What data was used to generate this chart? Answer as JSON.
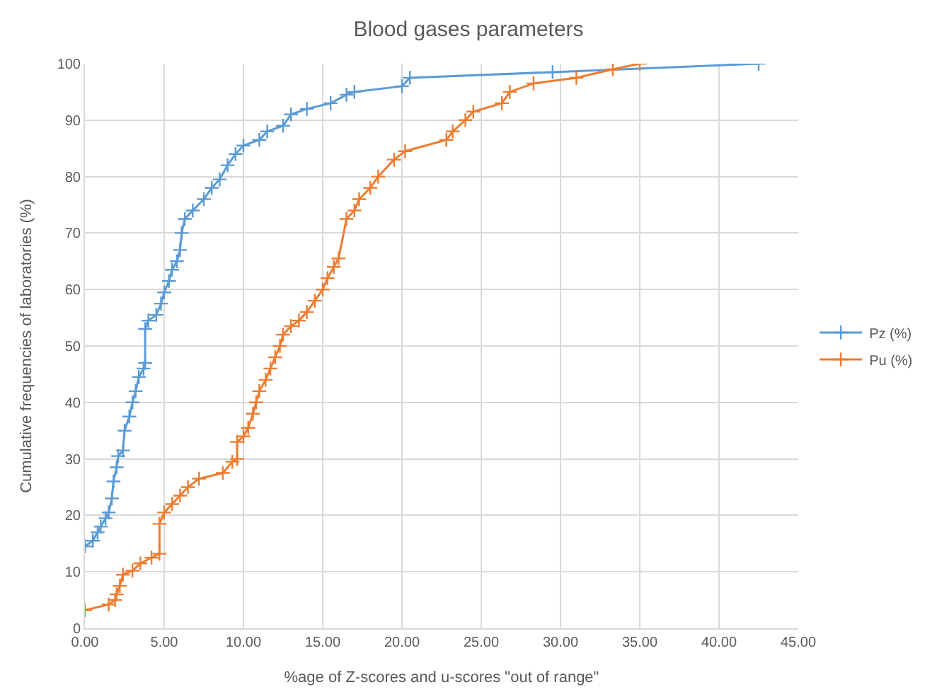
{
  "chart_data": {
    "type": "line",
    "title": "Blood gases parameters",
    "xlabel": "%age of Z-scores and u-scores \"out of range\"",
    "ylabel": "Cumulative frequencies of laboratories (%)",
    "xlim": [
      0,
      45
    ],
    "xticks": [
      {
        "value": 0,
        "label": "0.00"
      },
      {
        "value": 5,
        "label": "5.00"
      },
      {
        "value": 10,
        "label": "10.00"
      },
      {
        "value": 15,
        "label": "15.00"
      },
      {
        "value": 20,
        "label": "20.00"
      },
      {
        "value": 25,
        "label": "25.00"
      },
      {
        "value": 30,
        "label": "30.00"
      },
      {
        "value": 35,
        "label": "35.00"
      },
      {
        "value": 40,
        "label": "40.00"
      },
      {
        "value": 45,
        "label": "45.00"
      }
    ],
    "ylim": [
      0,
      100
    ],
    "yticks": [
      0,
      10,
      20,
      30,
      40,
      50,
      60,
      70,
      80,
      90,
      100
    ],
    "grid": true,
    "legend": "right",
    "marker": "cross",
    "line_style": "solid",
    "series": [
      {
        "name": "Pz (%)",
        "color": "#5b9bd5",
        "x": [
          0,
          0.5,
          0.8,
          1.0,
          1.3,
          1.5,
          1.7,
          1.8,
          2.0,
          2.1,
          2.4,
          2.5,
          2.8,
          3.0,
          3.2,
          3.4,
          3.7,
          3.8,
          3.8,
          4.0,
          4.5,
          4.8,
          5.0,
          5.3,
          5.5,
          5.8,
          6.0,
          6.1,
          6.3,
          6.8,
          7.5,
          8.0,
          8.5,
          9.0,
          9.5,
          10.0,
          11.0,
          11.5,
          12.5,
          13.0,
          14.0,
          15.5,
          16.5,
          17.0,
          20.0,
          20.5,
          29.5,
          42.5
        ],
        "values": [
          14.5,
          15.5,
          17,
          18,
          19.5,
          20.5,
          23,
          26,
          28.5,
          30.5,
          31.5,
          35,
          37.5,
          40,
          42,
          44.5,
          46,
          47,
          53,
          54.5,
          55.5,
          57.5,
          59.5,
          61.5,
          63.5,
          65,
          67,
          70,
          72.5,
          74,
          76,
          78,
          79.5,
          82,
          84,
          85.5,
          86.5,
          88,
          89,
          91,
          92,
          93,
          94.5,
          95,
          96,
          97.5,
          98.5,
          100
        ]
      },
      {
        "name": "Pu (%)",
        "color": "#ed7d31",
        "x": [
          0,
          1.5,
          1.9,
          2.0,
          2.2,
          2.4,
          3.0,
          3.5,
          4.2,
          4.7,
          4.7,
          5.0,
          5.5,
          6.0,
          6.5,
          7.2,
          8.7,
          9.3,
          9.6,
          9.6,
          10.0,
          10.3,
          10.6,
          10.8,
          11.0,
          11.4,
          11.7,
          12.0,
          12.3,
          12.5,
          13.0,
          13.5,
          14.0,
          14.5,
          15.0,
          15.3,
          15.7,
          16.0,
          16.5,
          17.0,
          17.3,
          18.0,
          18.5,
          19.5,
          20.2,
          22.8,
          23.2,
          24.0,
          24.5,
          26.3,
          26.8,
          28.3,
          31.0,
          33.3,
          35.0
        ],
        "values": [
          3.2,
          4.2,
          5,
          6,
          7.5,
          9.5,
          10.2,
          11.5,
          12.5,
          13.2,
          18.5,
          20.5,
          22,
          23.5,
          25,
          26.5,
          27.5,
          29.5,
          30,
          33,
          34,
          35.5,
          38,
          40,
          42,
          44,
          46,
          48,
          50,
          52,
          53.5,
          54.5,
          56,
          58,
          60,
          62,
          64,
          65.5,
          72.5,
          74,
          76,
          78,
          80,
          83,
          84.5,
          86.5,
          88,
          90,
          91.5,
          93,
          95,
          96.5,
          97.5,
          99,
          100
        ]
      }
    ]
  }
}
